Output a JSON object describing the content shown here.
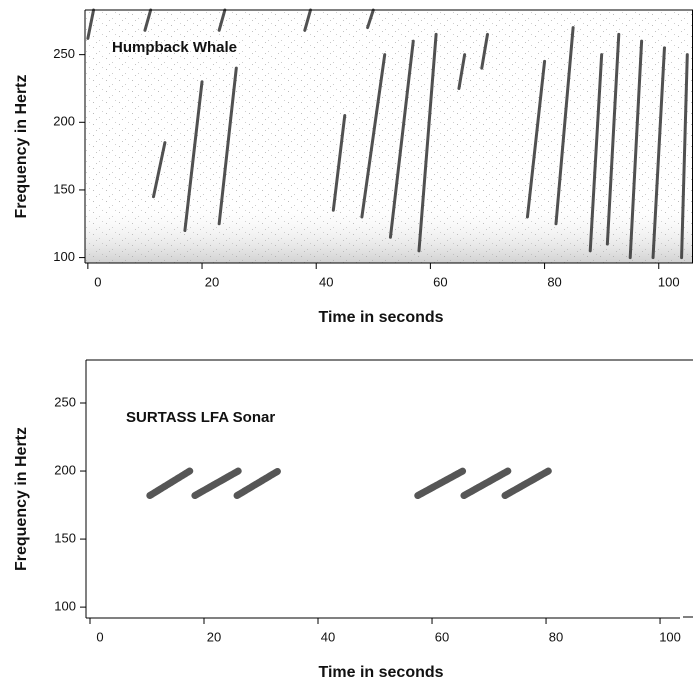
{
  "chart_data": [
    {
      "type": "spectrogram",
      "annotation": "Humpback Whale",
      "x_label": "Time in seconds",
      "y_label": "Frequency in Hertz",
      "xlim": [
        -0.5,
        106
      ],
      "ylim": [
        96,
        283
      ],
      "xticks": [
        0,
        20,
        40,
        60,
        80,
        100
      ],
      "yticks": [
        100,
        150,
        200,
        250
      ],
      "color": "#333333",
      "noise": true,
      "calls": [
        {
          "t": [
            11.5,
            13.5
          ],
          "f": [
            145,
            185
          ]
        },
        {
          "t": [
            17,
            20
          ],
          "f": [
            120,
            230
          ]
        },
        {
          "t": [
            23,
            26
          ],
          "f": [
            125,
            240
          ]
        },
        {
          "t": [
            43,
            45
          ],
          "f": [
            135,
            205
          ]
        },
        {
          "t": [
            48,
            52
          ],
          "f": [
            130,
            250
          ]
        },
        {
          "t": [
            53,
            57
          ],
          "f": [
            115,
            260
          ]
        },
        {
          "t": [
            58,
            61
          ],
          "f": [
            105,
            265
          ]
        },
        {
          "t": [
            65,
            66
          ],
          "f": [
            225,
            250
          ]
        },
        {
          "t": [
            69,
            70
          ],
          "f": [
            240,
            265
          ]
        },
        {
          "t": [
            77,
            80
          ],
          "f": [
            130,
            245
          ]
        },
        {
          "t": [
            82,
            85
          ],
          "f": [
            125,
            270
          ]
        },
        {
          "t": [
            88,
            90
          ],
          "f": [
            105,
            250
          ]
        },
        {
          "t": [
            91,
            93
          ],
          "f": [
            110,
            265
          ]
        },
        {
          "t": [
            95,
            97
          ],
          "f": [
            100,
            260
          ]
        },
        {
          "t": [
            99,
            101
          ],
          "f": [
            100,
            255
          ]
        },
        {
          "t": [
            104,
            105
          ],
          "f": [
            100,
            250
          ]
        },
        {
          "t": [
            0,
            1
          ],
          "f": [
            262,
            283
          ]
        },
        {
          "t": [
            10,
            11
          ],
          "f": [
            268,
            283
          ]
        },
        {
          "t": [
            23,
            24
          ],
          "f": [
            268,
            283
          ]
        },
        {
          "t": [
            38,
            39
          ],
          "f": [
            268,
            283
          ]
        },
        {
          "t": [
            49,
            50
          ],
          "f": [
            270,
            283
          ]
        }
      ]
    },
    {
      "type": "spectrogram",
      "annotation": "SURTASS LFA Sonar",
      "x_label": "Time in seconds",
      "y_label": "Frequency in Hertz",
      "xlim": [
        -0.7,
        103.5
      ],
      "ylim": [
        92,
        281.6
      ],
      "xticks": [
        0,
        20,
        40,
        60,
        80,
        100
      ],
      "yticks": [
        100,
        150,
        200,
        250
      ],
      "color": "#444444",
      "noise": false,
      "calls": [
        {
          "t": [
            10.5,
            17.5
          ],
          "f": [
            182,
            200
          ]
        },
        {
          "t": [
            18.4,
            26
          ],
          "f": [
            182,
            200
          ]
        },
        {
          "t": [
            25.8,
            33
          ],
          "f": [
            182,
            200
          ]
        },
        {
          "t": [
            57.5,
            65.4
          ],
          "f": [
            182,
            200
          ]
        },
        {
          "t": [
            65.6,
            73.3
          ],
          "f": [
            182,
            200
          ]
        },
        {
          "t": [
            72.8,
            80.4
          ],
          "f": [
            182,
            200
          ]
        }
      ]
    }
  ]
}
